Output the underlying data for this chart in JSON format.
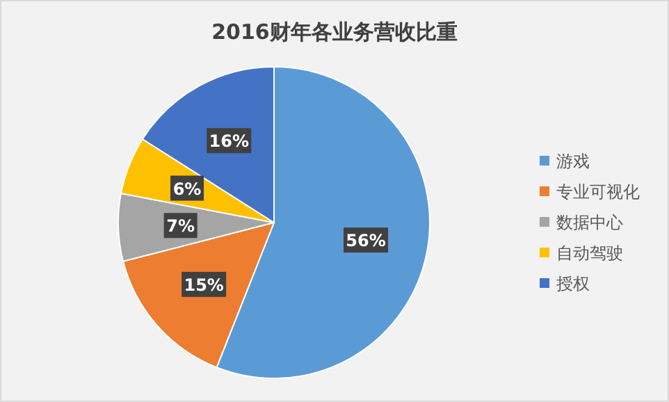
{
  "chart_data": {
    "type": "pie",
    "title": "2016财年各业务营收比重",
    "categories": [
      "游戏",
      "专业可视化",
      "数据中心",
      "自动驾驶",
      "授权"
    ],
    "values": [
      56,
      15,
      7,
      6,
      16
    ],
    "value_labels": [
      "56%",
      "15%",
      "7%",
      "6%",
      "16%"
    ],
    "colors": [
      "#5b9bd5",
      "#ed7d31",
      "#a5a5a5",
      "#ffc000",
      "#4472c4"
    ],
    "legend": "right"
  }
}
